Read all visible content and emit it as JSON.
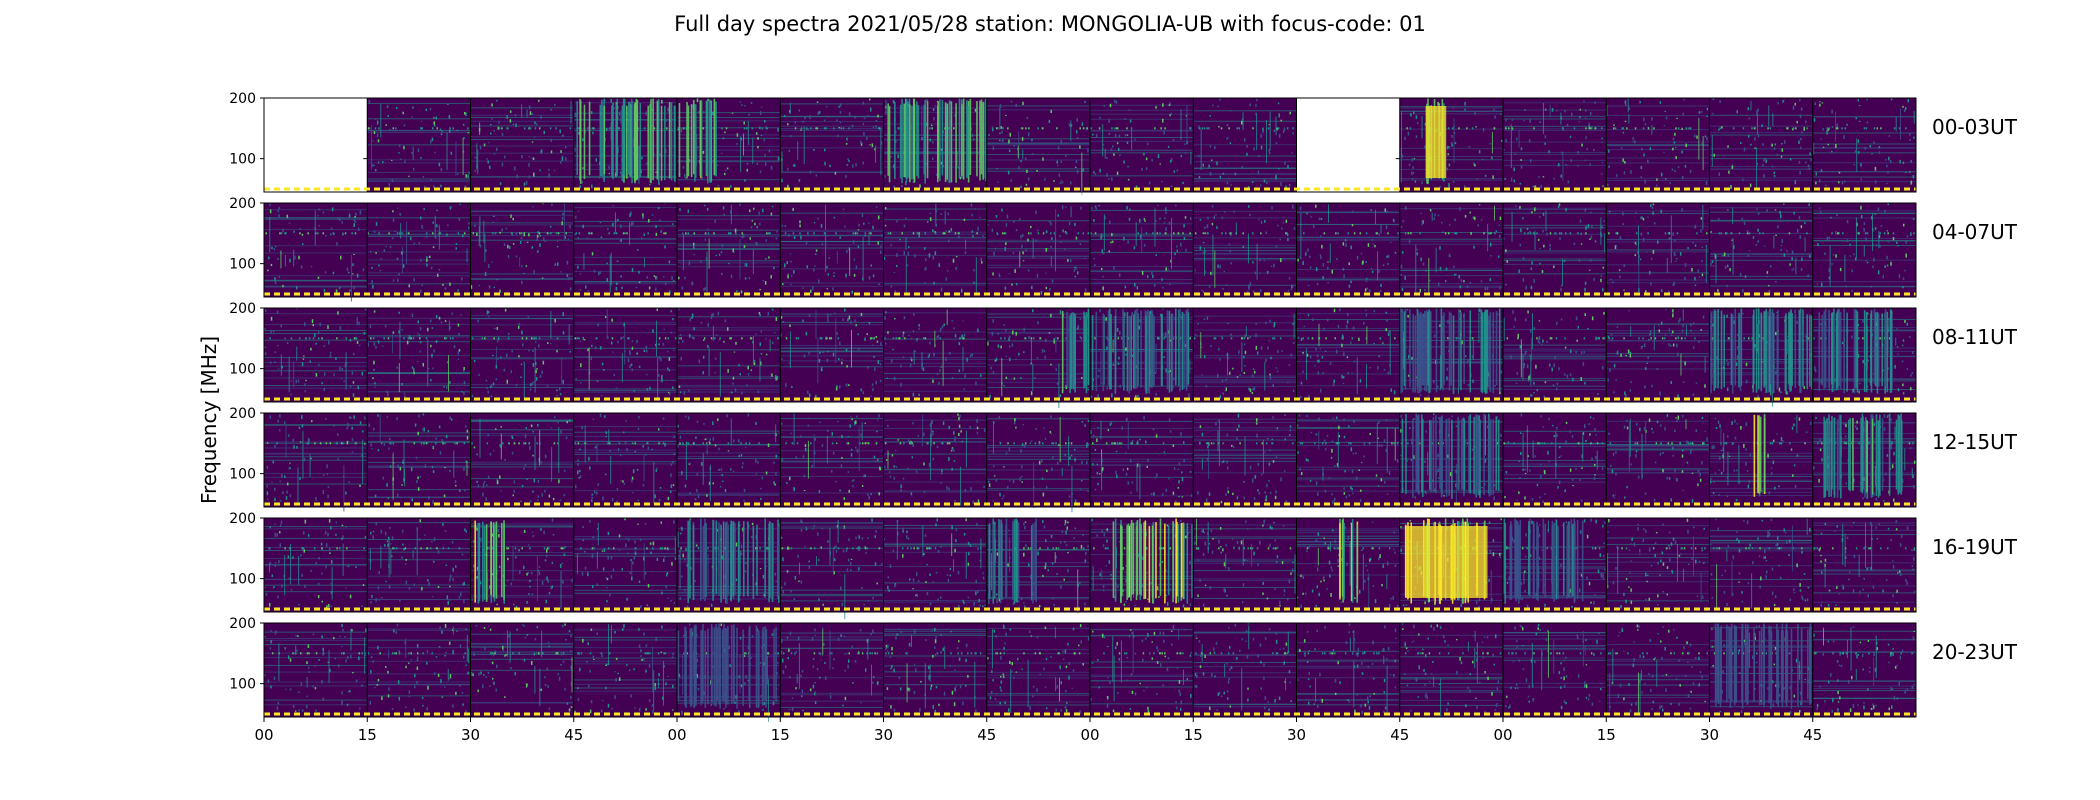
{
  "chart_data": {
    "type": "heatmap",
    "title": "Full day spectra 2021/05/28 station: MONGOLIA-UB with focus-code: 01",
    "ylabel": "Frequency [MHz]",
    "xlabel": "",
    "ylim": [
      45,
      200
    ],
    "y_ticks": [
      "200",
      "100"
    ],
    "x_ticks": [
      "00",
      "15",
      "30",
      "45",
      "00",
      "15",
      "30",
      "45",
      "00",
      "15",
      "30",
      "45",
      "00",
      "15",
      "30",
      "45"
    ],
    "colormap": "viridis",
    "colors": {
      "bg": "#440154",
      "low": "#3b528b",
      "mid": "#21918c",
      "high": "#5ec962",
      "peak": "#fde725",
      "marker": "#fde725"
    },
    "panels_per_row": 16,
    "rows": [
      {
        "label": "00-03UT",
        "missing": [
          0,
          10
        ],
        "bursts": [
          {
            "panel": 3,
            "start": 0.0,
            "end": 1.0,
            "intensity": 0.7
          },
          {
            "panel": 4,
            "start": 0.0,
            "end": 0.4,
            "intensity": 0.8
          },
          {
            "panel": 6,
            "start": 0.0,
            "end": 1.0,
            "intensity": 0.75
          },
          {
            "panel": 11,
            "start": 0.25,
            "end": 0.45,
            "intensity": 0.95
          }
        ]
      },
      {
        "label": "04-07UT",
        "missing": [],
        "bursts": []
      },
      {
        "label": "08-11UT",
        "missing": [],
        "bursts": [
          {
            "panel": 7,
            "start": 0.7,
            "end": 1.0,
            "intensity": 0.6
          },
          {
            "panel": 8,
            "start": 0.0,
            "end": 1.0,
            "intensity": 0.45
          },
          {
            "panel": 11,
            "start": 0.0,
            "end": 1.0,
            "intensity": 0.5
          },
          {
            "panel": 14,
            "start": 0.0,
            "end": 1.0,
            "intensity": 0.55
          },
          {
            "panel": 15,
            "start": 0.0,
            "end": 0.8,
            "intensity": 0.5
          }
        ]
      },
      {
        "label": "12-15UT",
        "missing": [],
        "bursts": [
          {
            "panel": 11,
            "start": 0.0,
            "end": 1.0,
            "intensity": 0.45
          },
          {
            "panel": 14,
            "start": 0.4,
            "end": 0.55,
            "intensity": 0.8
          },
          {
            "panel": 15,
            "start": 0.1,
            "end": 0.9,
            "intensity": 0.6
          }
        ]
      },
      {
        "label": "16-19UT",
        "missing": [],
        "bursts": [
          {
            "panel": 2,
            "start": 0.0,
            "end": 0.35,
            "intensity": 0.85
          },
          {
            "panel": 4,
            "start": 0.1,
            "end": 1.0,
            "intensity": 0.5
          },
          {
            "panel": 7,
            "start": 0.0,
            "end": 0.5,
            "intensity": 0.45
          },
          {
            "panel": 8,
            "start": 0.2,
            "end": 1.0,
            "intensity": 0.85
          },
          {
            "panel": 10,
            "start": 0.4,
            "end": 0.6,
            "intensity": 0.85
          },
          {
            "panel": 11,
            "start": 0.05,
            "end": 0.85,
            "intensity": 1.0
          },
          {
            "panel": 12,
            "start": 0.0,
            "end": 0.8,
            "intensity": 0.4
          }
        ]
      },
      {
        "label": "20-23UT",
        "missing": [],
        "bursts": [
          {
            "panel": 4,
            "start": 0.0,
            "end": 1.0,
            "intensity": 0.35
          },
          {
            "panel": 14,
            "start": 0.0,
            "end": 1.0,
            "intensity": 0.3
          }
        ]
      }
    ]
  }
}
